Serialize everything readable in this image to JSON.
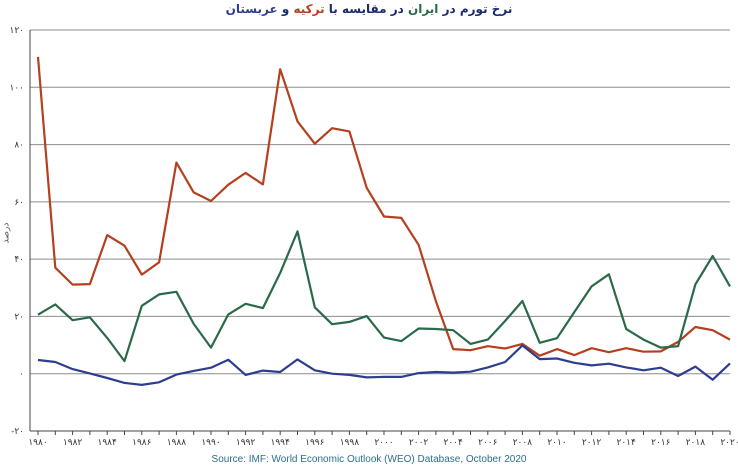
{
  "title": {
    "part1": "نرخ تورم در ",
    "iran": "ایران",
    "part2": " در مقایسه با ",
    "turkey": "ترکیه",
    "part3": " و ",
    "arabia": "عربستان"
  },
  "source": "Source: IMF: World Economic Outlook (WEO) Database, October 2020",
  "colors": {
    "turkey": "#b5401f",
    "iran": "#2a6a4a",
    "arabia": "#2e3d8f",
    "grid": "#8c8c8c",
    "axis": "#444444"
  },
  "chart_data": {
    "type": "line",
    "ylabel": "درصد",
    "ylim": [
      -20,
      120
    ],
    "yticks": [
      -20,
      0,
      20,
      40,
      60,
      80,
      100,
      120
    ],
    "ytick_labels": [
      "-۲۰",
      "۰",
      "۲۰",
      "۴۰",
      "۶۰",
      "۸۰",
      "۱۰۰",
      "۱۲۰"
    ],
    "x": [
      1980,
      1981,
      1982,
      1983,
      1984,
      1985,
      1986,
      1987,
      1988,
      1989,
      1990,
      1991,
      1992,
      1993,
      1994,
      1995,
      1996,
      1997,
      1998,
      1999,
      2000,
      2001,
      2002,
      2003,
      2004,
      2005,
      2006,
      2007,
      2008,
      2009,
      2010,
      2011,
      2012,
      2013,
      2014,
      2015,
      2016,
      2017,
      2018,
      2019,
      2020
    ],
    "xticks": [
      1980,
      1982,
      1984,
      1986,
      1988,
      1990,
      1992,
      1994,
      1996,
      1998,
      2000,
      2002,
      2004,
      2006,
      2008,
      2010,
      2012,
      2014,
      2016,
      2018,
      2020
    ],
    "xtick_labels": [
      "۱۹۸۰",
      "۱۹۸۲",
      "۱۹۸۴",
      "۱۹۸۶",
      "۱۹۸۸",
      "۱۹۹۰",
      "۱۹۹۲",
      "۱۹۹۴",
      "۱۹۹۶",
      "۱۹۹۸",
      "۲۰۰۰",
      "۲۰۰۲",
      "۲۰۰۴",
      "۲۰۰۶",
      "۲۰۰۸",
      "۲۰۱۰",
      "۲۰۱۲",
      "۲۰۱۴",
      "۲۰۱۶",
      "۲۰۱۸",
      "۲۰۲۰"
    ],
    "grid": true,
    "legend": "none",
    "series": [
      {
        "key": "turkey",
        "values": [
          110.6,
          37,
          31.1,
          31.3,
          48.4,
          44.7,
          34.6,
          38.9,
          73.7,
          63.3,
          60.3,
          66,
          70.1,
          66.1,
          106.3,
          88.1,
          80.3,
          85.7,
          84.6,
          64.9,
          54.9,
          54.4,
          45,
          25.3,
          8.6,
          8.2,
          9.6,
          8.8,
          10.4,
          6.3,
          8.6,
          6.5,
          8.9,
          7.5,
          8.9,
          7.7,
          7.8,
          11.1,
          16.3,
          15.2,
          11.9
        ]
      },
      {
        "key": "iran",
        "values": [
          20.6,
          24.2,
          18.7,
          19.7,
          12.5,
          4.4,
          23.7,
          27.7,
          28.6,
          17.4,
          9.1,
          20.7,
          24.4,
          22.9,
          35.2,
          49.7,
          23.2,
          17.3,
          18.1,
          20.1,
          12.6,
          11.4,
          15.8,
          15.6,
          15.2,
          10.4,
          11.9,
          18.4,
          25.4,
          10.8,
          12.4,
          21.5,
          30.5,
          34.7,
          15.6,
          11.9,
          9.1,
          9.6,
          31.2,
          41.1,
          30.5
        ]
      },
      {
        "key": "arabia",
        "values": [
          4.8,
          4.1,
          1.6,
          0.1,
          -1.5,
          -3.2,
          -3.9,
          -3,
          -0.3,
          1,
          2.1,
          4.9,
          -0.4,
          1.1,
          0.6,
          5,
          1.2,
          0,
          -0.4,
          -1.3,
          -1.1,
          -1.1,
          0.2,
          0.6,
          0.4,
          0.7,
          2.2,
          4.1,
          9.9,
          5.1,
          5.3,
          3.8,
          2.9,
          3.5,
          2.2,
          1.2,
          2.1,
          -0.8,
          2.5,
          -2.1,
          3.6
        ]
      }
    ]
  }
}
